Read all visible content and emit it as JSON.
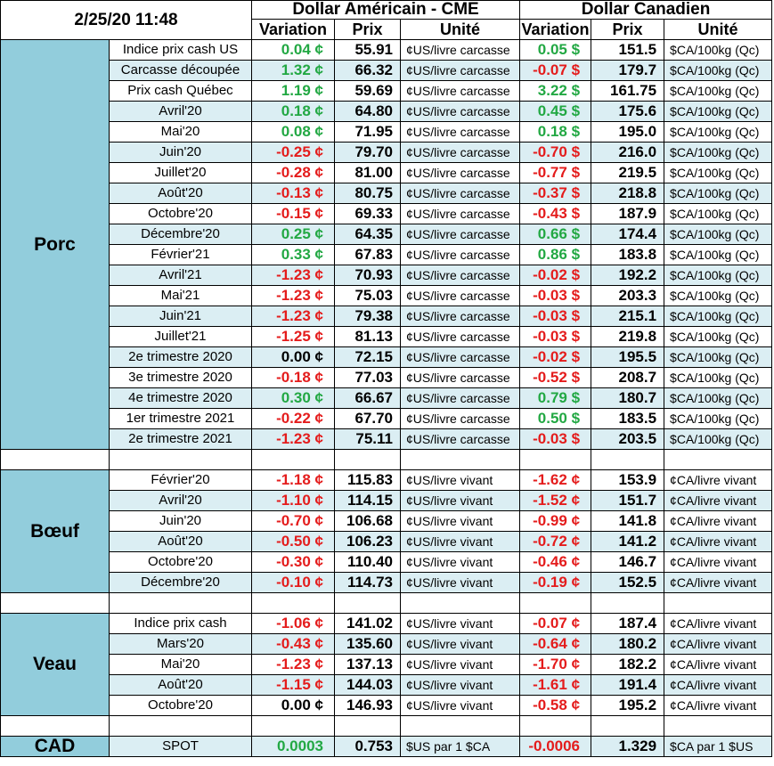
{
  "header": {
    "datetime": "2/25/20 11:48",
    "group_us": "Dollar Américain - CME",
    "group_ca": "Dollar Canadien",
    "col_variation": "Variation",
    "col_prix": "Prix",
    "col_unite": "Unité"
  },
  "sections": [
    {
      "name": "Porc",
      "rows": [
        {
          "label": "Indice prix cash US",
          "us_var": "0.04 ¢",
          "us_sign": "pos",
          "us_price": "55.91",
          "us_unit": "¢US/livre carcasse",
          "ca_var": "0.05 $",
          "ca_sign": "pos",
          "ca_price": "151.5",
          "ca_unit": "$CA/100kg (Qc)"
        },
        {
          "label": "Carcasse découpée",
          "us_var": "1.32 ¢",
          "us_sign": "pos",
          "us_price": "66.32",
          "us_unit": "¢US/livre carcasse",
          "ca_var": "-0.07 $",
          "ca_sign": "neg",
          "ca_price": "179.7",
          "ca_unit": "$CA/100kg (Qc)"
        },
        {
          "label": "Prix cash Québec",
          "us_var": "1.19 ¢",
          "us_sign": "pos",
          "us_price": "59.69",
          "us_unit": "¢US/livre carcasse",
          "ca_var": "3.22 $",
          "ca_sign": "pos",
          "ca_price": "161.75",
          "ca_unit": "$CA/100kg (Qc)"
        },
        {
          "label": "Avril'20",
          "us_var": "0.18 ¢",
          "us_sign": "pos",
          "us_price": "64.80",
          "us_unit": "¢US/livre carcasse",
          "ca_var": "0.45 $",
          "ca_sign": "pos",
          "ca_price": "175.6",
          "ca_unit": "$CA/100kg (Qc)"
        },
        {
          "label": "Mai'20",
          "us_var": "0.08 ¢",
          "us_sign": "pos",
          "us_price": "71.95",
          "us_unit": "¢US/livre carcasse",
          "ca_var": "0.18 $",
          "ca_sign": "pos",
          "ca_price": "195.0",
          "ca_unit": "$CA/100kg (Qc)"
        },
        {
          "label": "Juin'20",
          "us_var": "-0.25 ¢",
          "us_sign": "neg",
          "us_price": "79.70",
          "us_unit": "¢US/livre carcasse",
          "ca_var": "-0.70 $",
          "ca_sign": "neg",
          "ca_price": "216.0",
          "ca_unit": "$CA/100kg (Qc)"
        },
        {
          "label": "Juillet'20",
          "us_var": "-0.28 ¢",
          "us_sign": "neg",
          "us_price": "81.00",
          "us_unit": "¢US/livre carcasse",
          "ca_var": "-0.77 $",
          "ca_sign": "neg",
          "ca_price": "219.5",
          "ca_unit": "$CA/100kg (Qc)"
        },
        {
          "label": "Août'20",
          "us_var": "-0.13 ¢",
          "us_sign": "neg",
          "us_price": "80.75",
          "us_unit": "¢US/livre carcasse",
          "ca_var": "-0.37 $",
          "ca_sign": "neg",
          "ca_price": "218.8",
          "ca_unit": "$CA/100kg (Qc)"
        },
        {
          "label": "Octobre'20",
          "us_var": "-0.15 ¢",
          "us_sign": "neg",
          "us_price": "69.33",
          "us_unit": "¢US/livre carcasse",
          "ca_var": "-0.43 $",
          "ca_sign": "neg",
          "ca_price": "187.9",
          "ca_unit": "$CA/100kg (Qc)"
        },
        {
          "label": "Décembre'20",
          "us_var": "0.25 ¢",
          "us_sign": "pos",
          "us_price": "64.35",
          "us_unit": "¢US/livre carcasse",
          "ca_var": "0.66 $",
          "ca_sign": "pos",
          "ca_price": "174.4",
          "ca_unit": "$CA/100kg (Qc)"
        },
        {
          "label": "Février'21",
          "us_var": "0.33 ¢",
          "us_sign": "pos",
          "us_price": "67.83",
          "us_unit": "¢US/livre carcasse",
          "ca_var": "0.86 $",
          "ca_sign": "pos",
          "ca_price": "183.8",
          "ca_unit": "$CA/100kg (Qc)"
        },
        {
          "label": "Avril'21",
          "us_var": "-1.23 ¢",
          "us_sign": "neg",
          "us_price": "70.93",
          "us_unit": "¢US/livre carcasse",
          "ca_var": "-0.02 $",
          "ca_sign": "neg",
          "ca_price": "192.2",
          "ca_unit": "$CA/100kg (Qc)"
        },
        {
          "label": "Mai'21",
          "us_var": "-1.23 ¢",
          "us_sign": "neg",
          "us_price": "75.03",
          "us_unit": "¢US/livre carcasse",
          "ca_var": "-0.03 $",
          "ca_sign": "neg",
          "ca_price": "203.3",
          "ca_unit": "$CA/100kg (Qc)"
        },
        {
          "label": "Juin'21",
          "us_var": "-1.23 ¢",
          "us_sign": "neg",
          "us_price": "79.38",
          "us_unit": "¢US/livre carcasse",
          "ca_var": "-0.03 $",
          "ca_sign": "neg",
          "ca_price": "215.1",
          "ca_unit": "$CA/100kg (Qc)"
        },
        {
          "label": "Juillet'21",
          "us_var": "-1.25 ¢",
          "us_sign": "neg",
          "us_price": "81.13",
          "us_unit": "¢US/livre carcasse",
          "ca_var": "-0.03 $",
          "ca_sign": "neg",
          "ca_price": "219.8",
          "ca_unit": "$CA/100kg (Qc)"
        },
        {
          "label": "2e trimestre 2020",
          "us_var": "0.00 ¢",
          "us_sign": "zero",
          "us_price": "72.15",
          "us_unit": "¢US/livre carcasse",
          "ca_var": "-0.02 $",
          "ca_sign": "neg",
          "ca_price": "195.5",
          "ca_unit": "$CA/100kg (Qc)"
        },
        {
          "label": "3e trimestre 2020",
          "us_var": "-0.18 ¢",
          "us_sign": "neg",
          "us_price": "77.03",
          "us_unit": "¢US/livre carcasse",
          "ca_var": "-0.52 $",
          "ca_sign": "neg",
          "ca_price": "208.7",
          "ca_unit": "$CA/100kg (Qc)"
        },
        {
          "label": "4e trimestre 2020",
          "us_var": "0.30 ¢",
          "us_sign": "pos",
          "us_price": "66.67",
          "us_unit": "¢US/livre carcasse",
          "ca_var": "0.79 $",
          "ca_sign": "pos",
          "ca_price": "180.7",
          "ca_unit": "$CA/100kg (Qc)"
        },
        {
          "label": "1er trimestre 2021",
          "us_var": "-0.22 ¢",
          "us_sign": "neg",
          "us_price": "67.70",
          "us_unit": "¢US/livre carcasse",
          "ca_var": "0.50 $",
          "ca_sign": "pos",
          "ca_price": "183.5",
          "ca_unit": "$CA/100kg (Qc)"
        },
        {
          "label": "2e trimestre 2021",
          "us_var": "-1.23 ¢",
          "us_sign": "neg",
          "us_price": "75.11",
          "us_unit": "¢US/livre carcasse",
          "ca_var": "-0.03 $",
          "ca_sign": "neg",
          "ca_price": "203.5",
          "ca_unit": "$CA/100kg (Qc)"
        }
      ]
    },
    {
      "name": "Bœuf",
      "rows": [
        {
          "label": "Février'20",
          "us_var": "-1.18 ¢",
          "us_sign": "neg",
          "us_price": "115.83",
          "us_unit": "¢US/livre vivant",
          "ca_var": "-1.62 ¢",
          "ca_sign": "neg",
          "ca_price": "153.9",
          "ca_unit": "¢CA/livre vivant"
        },
        {
          "label": "Avril'20",
          "us_var": "-1.10 ¢",
          "us_sign": "neg",
          "us_price": "114.15",
          "us_unit": "¢US/livre vivant",
          "ca_var": "-1.52 ¢",
          "ca_sign": "neg",
          "ca_price": "151.7",
          "ca_unit": "¢CA/livre vivant"
        },
        {
          "label": "Juin'20",
          "us_var": "-0.70 ¢",
          "us_sign": "neg",
          "us_price": "106.68",
          "us_unit": "¢US/livre vivant",
          "ca_var": "-0.99 ¢",
          "ca_sign": "neg",
          "ca_price": "141.8",
          "ca_unit": "¢CA/livre vivant"
        },
        {
          "label": "Août'20",
          "us_var": "-0.50 ¢",
          "us_sign": "neg",
          "us_price": "106.23",
          "us_unit": "¢US/livre vivant",
          "ca_var": "-0.72 ¢",
          "ca_sign": "neg",
          "ca_price": "141.2",
          "ca_unit": "¢CA/livre vivant"
        },
        {
          "label": "Octobre'20",
          "us_var": "-0.30 ¢",
          "us_sign": "neg",
          "us_price": "110.40",
          "us_unit": "¢US/livre vivant",
          "ca_var": "-0.46 ¢",
          "ca_sign": "neg",
          "ca_price": "146.7",
          "ca_unit": "¢CA/livre vivant"
        },
        {
          "label": "Décembre'20",
          "us_var": "-0.10 ¢",
          "us_sign": "neg",
          "us_price": "114.73",
          "us_unit": "¢US/livre vivant",
          "ca_var": "-0.19 ¢",
          "ca_sign": "neg",
          "ca_price": "152.5",
          "ca_unit": "¢CA/livre vivant"
        }
      ]
    },
    {
      "name": "Veau",
      "rows": [
        {
          "label": "Indice prix cash",
          "us_var": "-1.06 ¢",
          "us_sign": "neg",
          "us_price": "141.02",
          "us_unit": "¢US/livre vivant",
          "ca_var": "-0.07 ¢",
          "ca_sign": "neg",
          "ca_price": "187.4",
          "ca_unit": "¢CA/livre vivant"
        },
        {
          "label": "Mars'20",
          "us_var": "-0.43 ¢",
          "us_sign": "neg",
          "us_price": "135.60",
          "us_unit": "¢US/livre vivant",
          "ca_var": "-0.64 ¢",
          "ca_sign": "neg",
          "ca_price": "180.2",
          "ca_unit": "¢CA/livre vivant"
        },
        {
          "label": "Mai'20",
          "us_var": "-1.23 ¢",
          "us_sign": "neg",
          "us_price": "137.13",
          "us_unit": "¢US/livre vivant",
          "ca_var": "-1.70 ¢",
          "ca_sign": "neg",
          "ca_price": "182.2",
          "ca_unit": "¢CA/livre vivant"
        },
        {
          "label": "Août'20",
          "us_var": "-1.15 ¢",
          "us_sign": "neg",
          "us_price": "144.03",
          "us_unit": "¢US/livre vivant",
          "ca_var": "-1.61 ¢",
          "ca_sign": "neg",
          "ca_price": "191.4",
          "ca_unit": "¢CA/livre vivant"
        },
        {
          "label": "Octobre'20",
          "us_var": "0.00 ¢",
          "us_sign": "zero",
          "us_price": "146.93",
          "us_unit": "¢US/livre vivant",
          "ca_var": "-0.58 ¢",
          "ca_sign": "neg",
          "ca_price": "195.2",
          "ca_unit": "¢CA/livre vivant"
        }
      ]
    }
  ],
  "cad": {
    "name": "CAD",
    "label": "SPOT",
    "us_var": "0.0003",
    "us_sign": "pos",
    "us_price": "0.753",
    "us_unit": "$US par 1 $CA",
    "ca_var": "-0.0006",
    "ca_sign": "neg",
    "ca_price": "1.329",
    "ca_unit": "$CA par 1 $US"
  },
  "colors": {
    "category_bg": "#92cddc",
    "row_shade": "#dbeef3",
    "positive": "#22a843",
    "negative": "#e41c1c"
  }
}
